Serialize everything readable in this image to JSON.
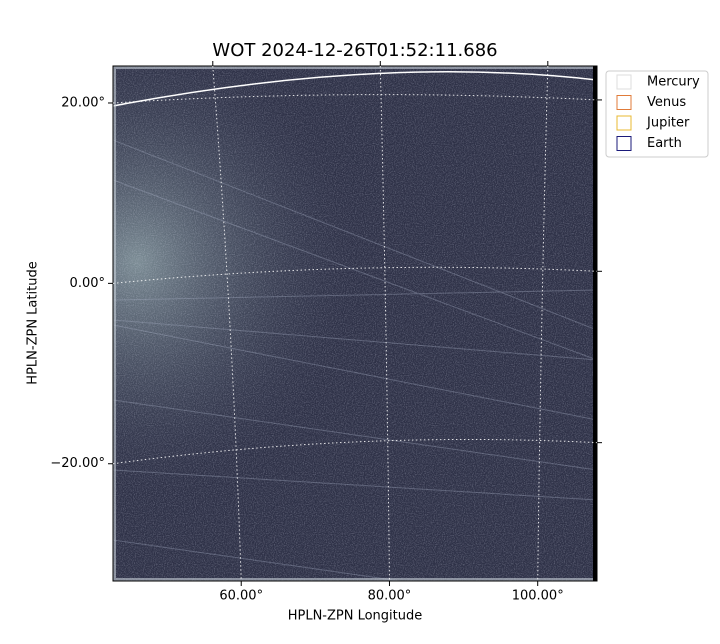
{
  "chart_data": {
    "type": "image",
    "title": "WOT 2024-12-26T01:52:11.686",
    "xlabel": "HPLN-ZPN Longitude",
    "ylabel": "HPLN-ZPN Latitude",
    "xlim": [
      42.7,
      108
    ],
    "ylim": [
      -33,
      24.1
    ],
    "xticks": [
      {
        "value": 60,
        "label": "60.00°"
      },
      {
        "value": 80,
        "label": "80.00°"
      },
      {
        "value": 100,
        "label": "100.00°"
      }
    ],
    "yticks": [
      {
        "value": -20,
        "label": "−20.00°"
      },
      {
        "value": 0,
        "label": "0.00°"
      },
      {
        "value": 20,
        "label": "20.00°"
      }
    ],
    "grid": true,
    "legend": "upper right",
    "series": [
      {
        "name": "Mercury",
        "color": "#dddddd"
      },
      {
        "name": "Venus",
        "color": "#e07b39"
      },
      {
        "name": "Jupiter",
        "color": "#e8b830"
      },
      {
        "name": "Earth",
        "color": "#1a1a7a"
      }
    ]
  }
}
